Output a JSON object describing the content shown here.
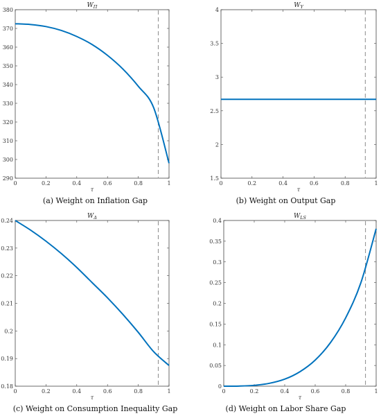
{
  "colors": {
    "series": "#0072BD",
    "reference_line": "#8a8a8a"
  },
  "chart_data": [
    {
      "type": "line",
      "title": "W_Π",
      "title_base": "W",
      "title_sub": "Π",
      "xlabel": "τ",
      "caption": "(a) Weight on Inflation Gap",
      "xlim": [
        0,
        1
      ],
      "ylim": [
        290,
        380
      ],
      "xticks": [
        0,
        0.2,
        0.4,
        0.6,
        0.8,
        1
      ],
      "xtick_labels": [
        "0",
        "0.2",
        "0.4",
        "0.6",
        "0.8",
        "1"
      ],
      "yticks": [
        290,
        300,
        310,
        320,
        330,
        340,
        350,
        360,
        370,
        380
      ],
      "ytick_labels": [
        "290",
        "300",
        "310",
        "320",
        "330",
        "340",
        "350",
        "360",
        "370",
        "380"
      ],
      "reference_x": 0.93,
      "x": [
        0,
        0.1,
        0.2,
        0.3,
        0.4,
        0.5,
        0.6,
        0.7,
        0.8,
        0.9,
        1.0
      ],
      "y": [
        372.5,
        372.1,
        371.0,
        368.9,
        365.7,
        361.4,
        355.6,
        348.3,
        339.1,
        327.7,
        298.0
      ]
    },
    {
      "type": "line",
      "title": "W_Y",
      "title_base": "W",
      "title_sub": "Y",
      "xlabel": "τ",
      "caption": "(b) Weight on Output Gap",
      "xlim": [
        0,
        1
      ],
      "ylim": [
        1.5,
        4
      ],
      "xticks": [
        0,
        0.2,
        0.4,
        0.6,
        0.8,
        1
      ],
      "xtick_labels": [
        "0",
        "0.2",
        "0.4",
        "0.6",
        "0.8",
        "1"
      ],
      "yticks": [
        1.5,
        2,
        2.5,
        3,
        3.5,
        4
      ],
      "ytick_labels": [
        "1.5",
        "2",
        "2.5",
        "3",
        "3.5",
        "4"
      ],
      "reference_x": 0.93,
      "x": [
        0,
        1
      ],
      "y": [
        2.67,
        2.67
      ]
    },
    {
      "type": "line",
      "title": "W_Δ",
      "title_base": "W",
      "title_sub": "Δ",
      "xlabel": "τ",
      "caption": "(c) Weight on Consumption Inequality Gap",
      "xlim": [
        0,
        1
      ],
      "ylim": [
        0.18,
        0.24
      ],
      "xticks": [
        0,
        0.2,
        0.4,
        0.6,
        0.8,
        1
      ],
      "xtick_labels": [
        "0",
        "0.2",
        "0.4",
        "0.6",
        "0.8",
        "1"
      ],
      "yticks": [
        0.18,
        0.19,
        0.2,
        0.21,
        0.22,
        0.23,
        0.24
      ],
      "ytick_labels": [
        "0.18",
        "0.19",
        "0.2",
        "0.21",
        "0.22",
        "0.23",
        "0.24"
      ],
      "reference_x": 0.93,
      "x": [
        0,
        0.1,
        0.2,
        0.3,
        0.4,
        0.5,
        0.6,
        0.7,
        0.8,
        0.9,
        1.0
      ],
      "y": [
        0.24,
        0.2365,
        0.2325,
        0.228,
        0.223,
        0.2175,
        0.212,
        0.206,
        0.1995,
        0.1925,
        0.1875
      ]
    },
    {
      "type": "line",
      "title": "W_LS",
      "title_base": "W",
      "title_sub": "LS",
      "xlabel": "τ",
      "caption": "(d) Weight on Labor Share Gap",
      "xlim": [
        0,
        1
      ],
      "ylim": [
        0,
        0.4
      ],
      "xticks": [
        0,
        0.2,
        0.4,
        0.6,
        0.8,
        1
      ],
      "xtick_labels": [
        "0",
        "0.2",
        "0.4",
        "0.6",
        "0.8",
        "1"
      ],
      "yticks": [
        0,
        0.05,
        0.1,
        0.15,
        0.2,
        0.25,
        0.3,
        0.35,
        0.4
      ],
      "ytick_labels": [
        "0",
        "0.05",
        "0.1",
        "0.15",
        "0.2",
        "0.25",
        "0.3",
        "0.35",
        "0.4"
      ],
      "reference_x": 0.93,
      "x": [
        0,
        0.1,
        0.2,
        0.3,
        0.4,
        0.5,
        0.6,
        0.7,
        0.8,
        0.9,
        1.0
      ],
      "y": [
        0.0,
        0.0003,
        0.002,
        0.007,
        0.017,
        0.035,
        0.063,
        0.105,
        0.165,
        0.25,
        0.38
      ]
    }
  ]
}
